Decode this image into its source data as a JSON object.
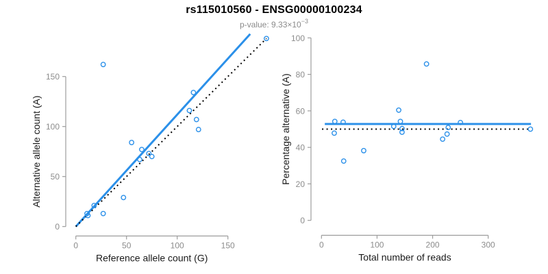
{
  "header": {
    "title": "rs115010560 - ENSG00000100234",
    "p_value_prefix": "p-value: ",
    "p_value_base": "9.33×10",
    "p_value_exponent": "−3"
  },
  "colors": {
    "accent_blue": "#2b90e9",
    "dashed_line": "#000000",
    "axis": "#9c9c9c",
    "tick_text": "#8c8c8c",
    "axis_title": "#1a1a1a"
  },
  "chart_data": [
    {
      "id": "allele-count-scatter",
      "type": "scatter",
      "xlabel": "Reference allele count (G)",
      "ylabel": "Alternative allele count (A)",
      "xticks": [
        0,
        50,
        100,
        150
      ],
      "yticks": [
        0,
        50,
        100,
        150
      ],
      "xlim": [
        0,
        195
      ],
      "ylim": [
        0,
        195
      ],
      "grid": false,
      "points": [
        [
          11,
          13
        ],
        [
          12,
          11
        ],
        [
          18,
          21
        ],
        [
          27,
          13
        ],
        [
          47,
          29
        ],
        [
          55,
          84
        ],
        [
          63,
          67
        ],
        [
          65,
          77
        ],
        [
          72,
          73
        ],
        [
          75,
          70
        ],
        [
          112,
          116
        ],
        [
          116,
          134
        ],
        [
          119,
          107
        ],
        [
          121,
          97
        ],
        [
          27,
          162
        ],
        [
          188,
          188
        ]
      ],
      "lines": [
        {
          "name": "fit-line",
          "style": "solid",
          "color_key": "accent_blue",
          "x1": 0,
          "y1": 0,
          "x2": 172,
          "y2": 192.5
        },
        {
          "name": "identity-line",
          "style": "dotted",
          "color_key": "dashed_line",
          "x1": 0,
          "y1": 0,
          "x2": 188,
          "y2": 188
        }
      ]
    },
    {
      "id": "percentage-scatter",
      "type": "scatter",
      "xlabel": "Total number of reads",
      "ylabel": "Percentage alternative (A)",
      "xticks": [
        0,
        100,
        200,
        300
      ],
      "yticks": [
        0,
        20,
        40,
        60,
        80,
        100
      ],
      "xlim": [
        0,
        380
      ],
      "ylim": [
        0,
        100
      ],
      "grid": false,
      "points": [
        [
          24,
          54.2
        ],
        [
          23,
          47.8
        ],
        [
          39,
          53.8
        ],
        [
          40,
          32.5
        ],
        [
          76,
          38.2
        ],
        [
          139,
          60.4
        ],
        [
          130,
          51.5
        ],
        [
          142,
          54.2
        ],
        [
          145,
          50.3
        ],
        [
          145,
          48.3
        ],
        [
          228,
          50.9
        ],
        [
          250,
          53.6
        ],
        [
          226,
          47.3
        ],
        [
          218,
          44.5
        ],
        [
          189,
          85.7
        ],
        [
          376,
          50
        ]
      ],
      "lines": [
        {
          "name": "estimate-line",
          "style": "solid",
          "color_key": "accent_blue",
          "x1": 6,
          "y1": 52.8,
          "x2": 377,
          "y2": 52.8
        },
        {
          "name": "null-line",
          "style": "dotted",
          "color_key": "dashed_line",
          "x1": 1,
          "y1": 50,
          "x2": 374,
          "y2": 50
        }
      ]
    }
  ]
}
